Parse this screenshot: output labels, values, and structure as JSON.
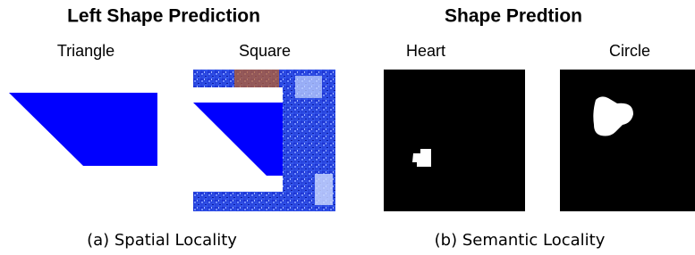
{
  "left": {
    "title": "Left Shape Prediction",
    "labels": [
      "Triangle",
      "Square"
    ],
    "caption": "(a) Spatial Locality"
  },
  "right": {
    "title": "Shape Predtion",
    "labels": [
      "Heart",
      "Circle"
    ],
    "caption": "(b) Semantic Locality"
  }
}
